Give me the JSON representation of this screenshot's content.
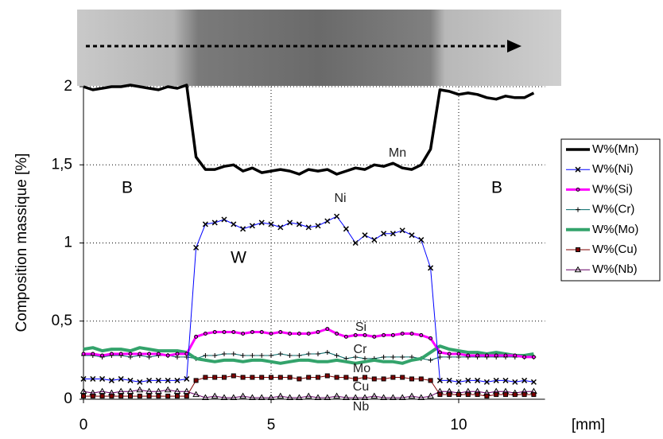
{
  "chart_data": {
    "type": "line",
    "y_label": "Composition massique [%]",
    "x_label": "[mm]",
    "xlim": [
      0,
      12.3
    ],
    "ylim": [
      0,
      2
    ],
    "xticks": [
      0,
      5,
      10
    ],
    "yticks": [
      0,
      {
        "value": 0.5,
        "label": "0,5"
      },
      1,
      {
        "value": 1.5,
        "label": "1,5"
      },
      2
    ],
    "grid": true,
    "legend": "right",
    "annotations": [
      "B",
      "B",
      "W",
      "Mn",
      "Ni",
      "Si",
      "Cr",
      "Mo",
      "Cu",
      "Nb"
    ],
    "x": [
      0,
      0.25,
      0.5,
      0.75,
      1,
      1.25,
      1.5,
      1.75,
      2,
      2.25,
      2.5,
      2.75,
      3,
      3.25,
      3.5,
      3.75,
      4,
      4.25,
      4.5,
      4.75,
      5,
      5.25,
      5.5,
      5.75,
      6,
      6.25,
      6.5,
      6.75,
      7,
      7.25,
      7.5,
      7.75,
      8,
      8.25,
      8.5,
      8.75,
      9,
      9.25,
      9.5,
      9.75,
      10,
      10.25,
      10.5,
      10.75,
      11,
      11.25,
      11.5,
      11.75,
      12
    ],
    "series": [
      {
        "name": "W%(Mn)",
        "color": "#000000",
        "width": 3.5,
        "marker": "none",
        "values": [
          2.0,
          1.98,
          1.99,
          2.0,
          2.0,
          2.01,
          2.0,
          1.99,
          1.98,
          2.0,
          1.99,
          2.01,
          1.55,
          1.47,
          1.47,
          1.49,
          1.5,
          1.46,
          1.48,
          1.45,
          1.46,
          1.47,
          1.46,
          1.44,
          1.47,
          1.46,
          1.47,
          1.44,
          1.46,
          1.48,
          1.47,
          1.5,
          1.49,
          1.51,
          1.48,
          1.47,
          1.5,
          1.6,
          1.98,
          1.97,
          1.95,
          1.96,
          1.95,
          1.93,
          1.92,
          1.94,
          1.93,
          1.93,
          1.96
        ]
      },
      {
        "name": "W%(Ni)",
        "color": "#0000ff",
        "width": 1,
        "marker": "x",
        "values": [
          0.13,
          0.13,
          0.13,
          0.12,
          0.13,
          0.12,
          0.11,
          0.12,
          0.12,
          0.12,
          0.12,
          0.13,
          0.97,
          1.12,
          1.13,
          1.15,
          1.12,
          1.09,
          1.11,
          1.13,
          1.12,
          1.1,
          1.13,
          1.12,
          1.1,
          1.11,
          1.14,
          1.17,
          1.09,
          1.0,
          1.05,
          1.02,
          1.06,
          1.06,
          1.08,
          1.05,
          1.02,
          0.84,
          0.12,
          0.12,
          0.11,
          0.12,
          0.12,
          0.11,
          0.12,
          0.12,
          0.11,
          0.12,
          0.11
        ]
      },
      {
        "name": "W%(Si)",
        "color": "#ff00ff",
        "width": 3,
        "marker": "circle",
        "values": [
          0.29,
          0.29,
          0.28,
          0.29,
          0.29,
          0.29,
          0.29,
          0.29,
          0.29,
          0.28,
          0.29,
          0.29,
          0.4,
          0.42,
          0.43,
          0.43,
          0.43,
          0.42,
          0.43,
          0.43,
          0.42,
          0.43,
          0.42,
          0.42,
          0.42,
          0.43,
          0.45,
          0.42,
          0.4,
          0.41,
          0.41,
          0.4,
          0.41,
          0.41,
          0.42,
          0.42,
          0.41,
          0.39,
          0.3,
          0.29,
          0.29,
          0.28,
          0.28,
          0.28,
          0.28,
          0.28,
          0.28,
          0.27,
          0.27
        ]
      },
      {
        "name": "W%(Cr)",
        "color": "#006666",
        "width": 1,
        "marker": "plus",
        "values": [
          0.28,
          0.28,
          0.27,
          0.28,
          0.28,
          0.27,
          0.28,
          0.27,
          0.28,
          0.28,
          0.27,
          0.27,
          0.26,
          0.28,
          0.28,
          0.29,
          0.29,
          0.28,
          0.28,
          0.28,
          0.28,
          0.29,
          0.28,
          0.28,
          0.29,
          0.29,
          0.3,
          0.28,
          0.26,
          0.27,
          0.26,
          0.26,
          0.27,
          0.27,
          0.27,
          0.27,
          0.26,
          0.25,
          0.27,
          0.27,
          0.27,
          0.27,
          0.27,
          0.27,
          0.27,
          0.27,
          0.27,
          0.27,
          0.27
        ]
      },
      {
        "name": "W%(Mo)",
        "color": "#33a36b",
        "width": 4,
        "marker": "none",
        "values": [
          0.32,
          0.33,
          0.31,
          0.32,
          0.32,
          0.31,
          0.33,
          0.32,
          0.31,
          0.31,
          0.31,
          0.3,
          0.26,
          0.25,
          0.24,
          0.25,
          0.25,
          0.24,
          0.25,
          0.25,
          0.24,
          0.23,
          0.24,
          0.25,
          0.25,
          0.24,
          0.24,
          0.25,
          0.24,
          0.23,
          0.24,
          0.25,
          0.24,
          0.24,
          0.23,
          0.25,
          0.26,
          0.3,
          0.34,
          0.32,
          0.31,
          0.3,
          0.3,
          0.29,
          0.3,
          0.29,
          0.28,
          0.28,
          0.29
        ]
      },
      {
        "name": "W%(Cu)",
        "color": "#800000",
        "width": 1,
        "marker": "square",
        "values": [
          0.02,
          0.02,
          0.02,
          0.02,
          0.02,
          0.02,
          0.02,
          0.02,
          0.02,
          0.02,
          0.02,
          0.02,
          0.12,
          0.14,
          0.14,
          0.14,
          0.15,
          0.14,
          0.14,
          0.14,
          0.14,
          0.14,
          0.14,
          0.13,
          0.14,
          0.14,
          0.15,
          0.14,
          0.14,
          0.13,
          0.14,
          0.13,
          0.13,
          0.14,
          0.14,
          0.13,
          0.13,
          0.12,
          0.03,
          0.03,
          0.03,
          0.03,
          0.03,
          0.02,
          0.03,
          0.03,
          0.03,
          0.03,
          0.03
        ]
      },
      {
        "name": "W%(Nb)",
        "color": "#660066",
        "width": 1,
        "marker": "triangle",
        "values": [
          0.05,
          0.04,
          0.05,
          0.04,
          0.05,
          0.05,
          0.06,
          0.05,
          0.05,
          0.06,
          0.05,
          0.05,
          0.03,
          0.01,
          0.02,
          0.01,
          0.01,
          0.02,
          0.01,
          0.01,
          0.01,
          0.02,
          0.01,
          0.01,
          0.02,
          0.01,
          0.01,
          0.02,
          0.01,
          0.01,
          0.01,
          0.02,
          0.01,
          0.01,
          0.01,
          0.02,
          0.01,
          0.02,
          0.05,
          0.05,
          0.04,
          0.05,
          0.05,
          0.04,
          0.05,
          0.05,
          0.04,
          0.05,
          0.05
        ]
      }
    ]
  }
}
